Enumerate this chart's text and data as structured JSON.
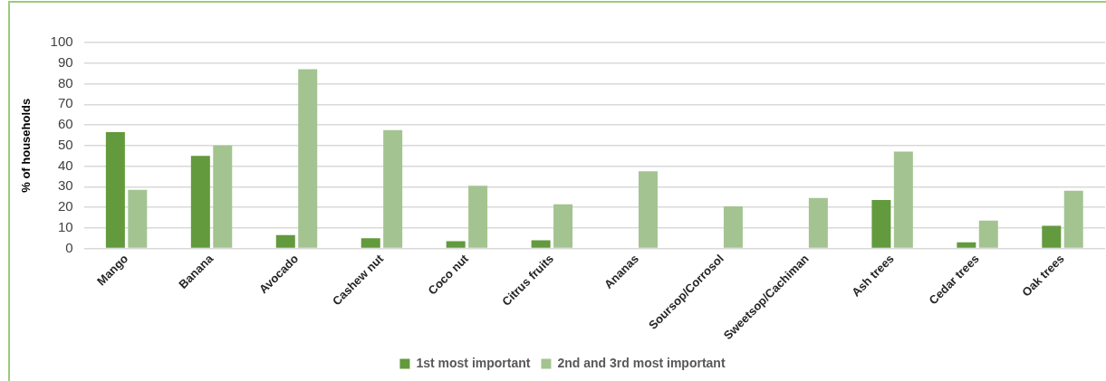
{
  "chart_data": {
    "type": "bar",
    "ylabel": "% of households",
    "categories": [
      "Mango",
      "Banana",
      "Avocado",
      "Cashew nut",
      "Coco nut",
      "Citrus fruits",
      "Ananas",
      "Soursop/Corrosol",
      "Sweetsop/Cachiman",
      "Ash trees",
      "Cedar trees",
      "Oak trees"
    ],
    "series": [
      {
        "name": "1st most important",
        "color": "#629a3d",
        "values": [
          56.5,
          45,
          6.5,
          5,
          3.5,
          4,
          null,
          null,
          null,
          23.5,
          3,
          11
        ]
      },
      {
        "name": "2nd and 3rd most important",
        "color": "#a3c490",
        "values": [
          28.5,
          50,
          87,
          57.5,
          30.5,
          21.5,
          37.5,
          20.5,
          24.5,
          47,
          13.5,
          28
        ]
      }
    ],
    "ylim": [
      0,
      100
    ],
    "yticks": [
      0,
      10,
      20,
      30,
      40,
      50,
      60,
      70,
      80,
      90,
      100
    ],
    "grid": "y",
    "legend": "bottom"
  }
}
